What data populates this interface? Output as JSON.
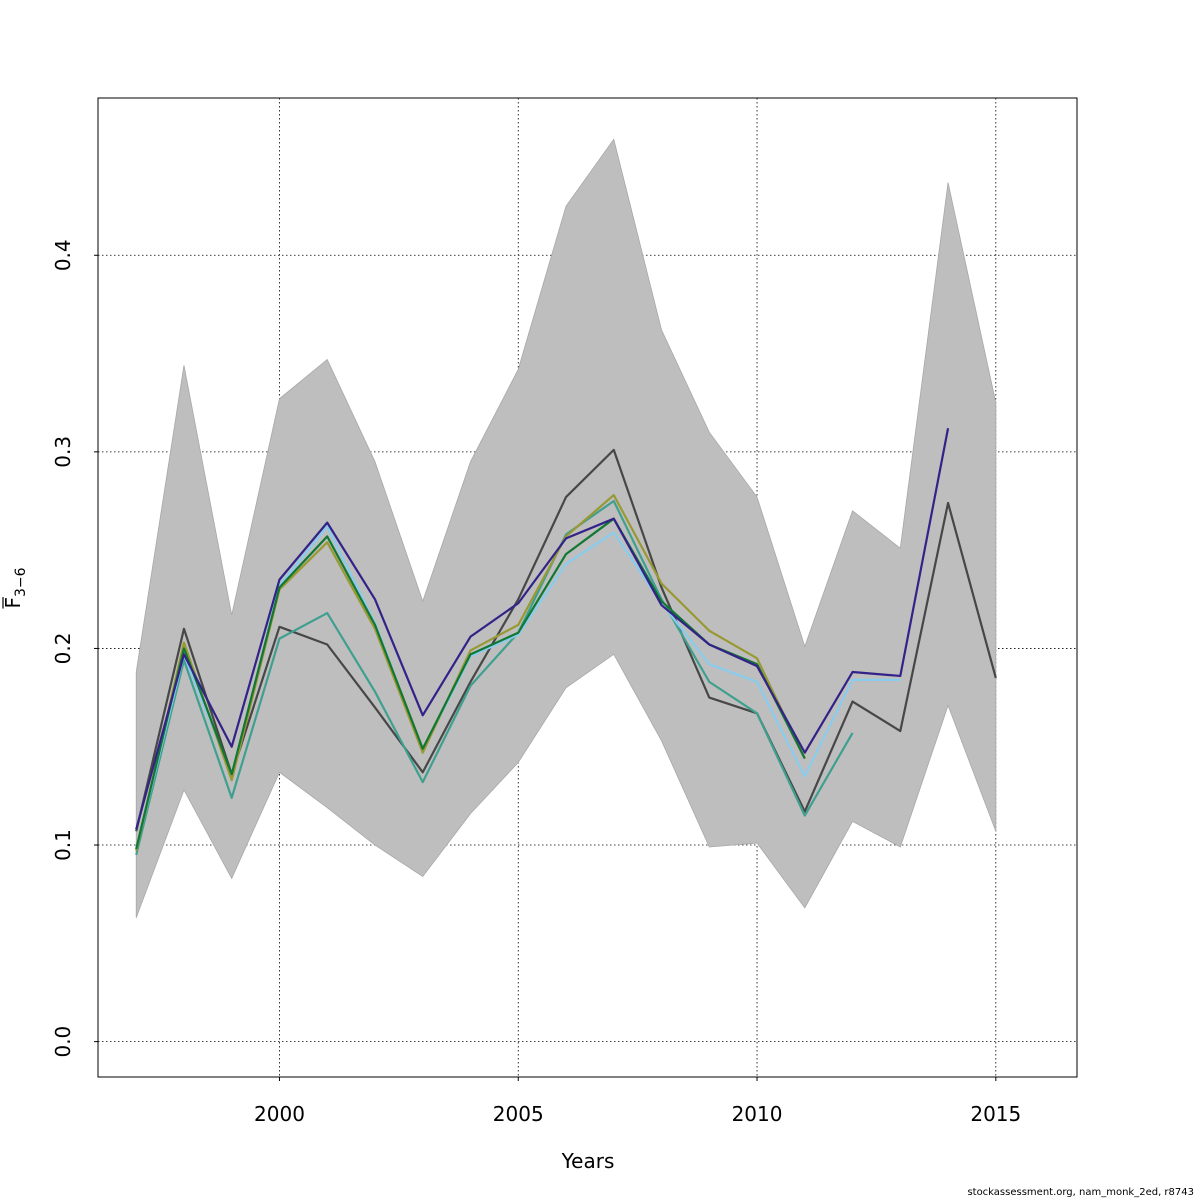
{
  "chart_data": {
    "type": "line",
    "title": "",
    "xlabel": "Years",
    "ylabel_main": "F",
    "ylabel_sub": "3−6",
    "xlim": [
      1996.2,
      2016.7
    ],
    "ylim": [
      -0.018,
      0.48
    ],
    "x_ticks": [
      2000,
      2005,
      2010,
      2015
    ],
    "y_ticks": [
      0.0,
      0.1,
      0.2,
      0.3,
      0.4
    ],
    "x_tick_labels": [
      "2000",
      "2005",
      "2010",
      "2015"
    ],
    "y_tick_labels": [
      "0.0",
      "0.1",
      "0.2",
      "0.3",
      "0.4"
    ],
    "grid": true,
    "band": {
      "color": "#bebebe",
      "x": [
        1997,
        1998,
        1999,
        2000,
        2001,
        2002,
        2003,
        2004,
        2005,
        2006,
        2007,
        2008,
        2009,
        2010,
        2011,
        2012,
        2013,
        2014,
        2015
      ],
      "upper": [
        0.188,
        0.344,
        0.217,
        0.327,
        0.347,
        0.295,
        0.224,
        0.295,
        0.342,
        0.425,
        0.459,
        0.362,
        0.31,
        0.277,
        0.201,
        0.27,
        0.251,
        0.437,
        0.325
      ],
      "lower": [
        0.063,
        0.128,
        0.083,
        0.137,
        0.119,
        0.1,
        0.084,
        0.116,
        0.142,
        0.18,
        0.197,
        0.153,
        0.099,
        0.101,
        0.068,
        0.112,
        0.099,
        0.171,
        0.107
      ]
    },
    "series": [
      {
        "color": "#474747",
        "x": [
          1997,
          1998,
          1999,
          2000,
          2001,
          2002,
          2003,
          2004,
          2005,
          2006,
          2007,
          2008,
          2009,
          2010,
          2011,
          2012,
          2013,
          2014,
          2015
        ],
        "values": [
          0.107,
          0.21,
          0.136,
          0.211,
          0.202,
          0.17,
          0.137,
          0.183,
          0.225,
          0.277,
          0.301,
          0.231,
          0.175,
          0.167,
          0.117,
          0.173,
          0.158,
          0.274,
          0.185
        ]
      },
      {
        "color": "#3fa08f",
        "x": [
          1997,
          1998,
          1999,
          2000,
          2001,
          2002,
          2003,
          2004,
          2005,
          2006,
          2007,
          2008,
          2009,
          2010,
          2011,
          2012
        ],
        "values": [
          0.095,
          0.194,
          0.124,
          0.205,
          0.218,
          0.178,
          0.132,
          0.181,
          0.208,
          0.258,
          0.275,
          0.225,
          0.183,
          0.167,
          0.115,
          0.157
        ]
      },
      {
        "color": "#88ccee",
        "x": [
          1997,
          1998,
          1999,
          2000,
          2001,
          2002,
          2003,
          2004,
          2005,
          2006,
          2007,
          2008,
          2009,
          2010,
          2011,
          2012,
          2013
        ],
        "values": [
          0.098,
          0.197,
          0.135,
          0.232,
          0.262,
          0.213,
          0.148,
          0.196,
          0.207,
          0.243,
          0.259,
          0.223,
          0.192,
          0.183,
          0.135,
          0.184,
          0.184
        ]
      },
      {
        "color": "#999933",
        "x": [
          1997,
          1998,
          1999,
          2000,
          2001,
          2002,
          2003,
          2004,
          2005,
          2006,
          2007,
          2008,
          2009,
          2010,
          2011
        ],
        "values": [
          0.097,
          0.203,
          0.133,
          0.23,
          0.254,
          0.21,
          0.147,
          0.199,
          0.212,
          0.257,
          0.278,
          0.233,
          0.209,
          0.195,
          0.144
        ]
      },
      {
        "color": "#117733",
        "x": [
          1997,
          1998,
          1999,
          2000,
          2001,
          2002,
          2003,
          2004,
          2005,
          2006,
          2007,
          2008,
          2009,
          2010,
          2011
        ],
        "values": [
          0.098,
          0.2,
          0.136,
          0.231,
          0.257,
          0.212,
          0.149,
          0.197,
          0.208,
          0.248,
          0.266,
          0.224,
          0.202,
          0.192,
          0.144
        ]
      },
      {
        "color": "#332288",
        "x": [
          1997,
          1998,
          1999,
          2000,
          2001,
          2002,
          2003,
          2004,
          2005,
          2006,
          2007,
          2008,
          2009,
          2010,
          2011,
          2012,
          2013,
          2014
        ],
        "values": [
          0.108,
          0.197,
          0.15,
          0.235,
          0.264,
          0.225,
          0.166,
          0.206,
          0.223,
          0.256,
          0.266,
          0.222,
          0.202,
          0.191,
          0.147,
          0.188,
          0.186,
          0.312
        ]
      }
    ]
  },
  "footer": "stockassessment.org, nam_monk_2ed, r8743"
}
